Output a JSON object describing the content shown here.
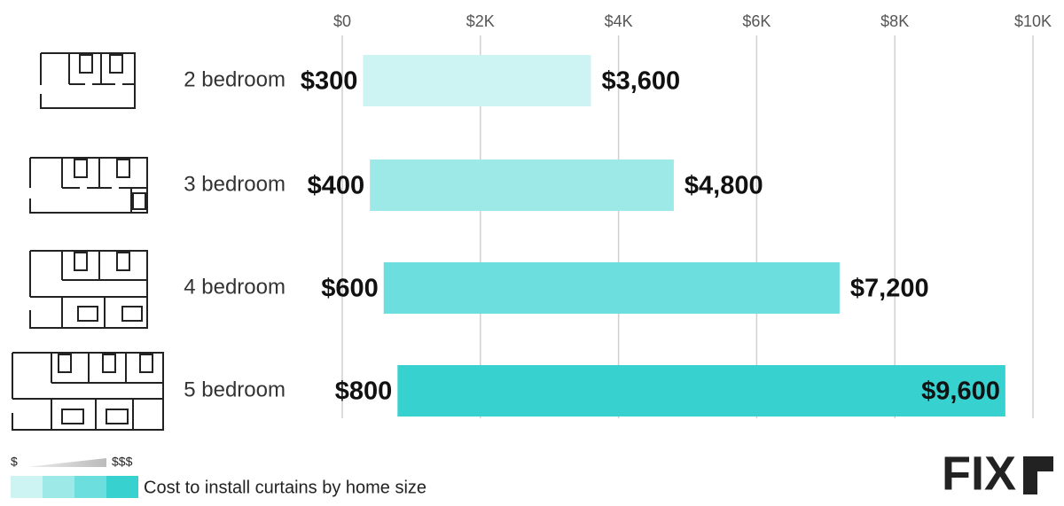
{
  "chart_data": {
    "type": "range-bar",
    "categories": [
      "2 bedroom",
      "3 bedroom",
      "4 bedroom",
      "5 bedroom"
    ],
    "low": {
      "values": [
        300,
        400,
        600,
        800
      ],
      "value_labels": [
        "$300",
        "$400",
        "$600",
        "$800"
      ]
    },
    "high": {
      "values": [
        3600,
        4800,
        7200,
        9600
      ],
      "value_labels": [
        "$3,600",
        "$4,800",
        "$7,200",
        "$9,600"
      ]
    },
    "colors": [
      "#cdf3f2",
      "#9de9e8",
      "#6cdedd",
      "#37d1d0"
    ],
    "xlim": [
      0,
      10000
    ],
    "xticks": [
      {
        "value": 0,
        "label": "$0"
      },
      {
        "value": 2000,
        "label": "$2K"
      },
      {
        "value": 4000,
        "label": "$4K"
      },
      {
        "value": 6000,
        "label": "$6K"
      },
      {
        "value": 8000,
        "label": "$8K"
      },
      {
        "value": 10000,
        "label": "$10K"
      }
    ],
    "grid": true,
    "legend": {
      "low_symbol": "$",
      "high_symbol": "$$$",
      "caption": "Cost to install curtains by home size"
    }
  },
  "logo": "FIX"
}
